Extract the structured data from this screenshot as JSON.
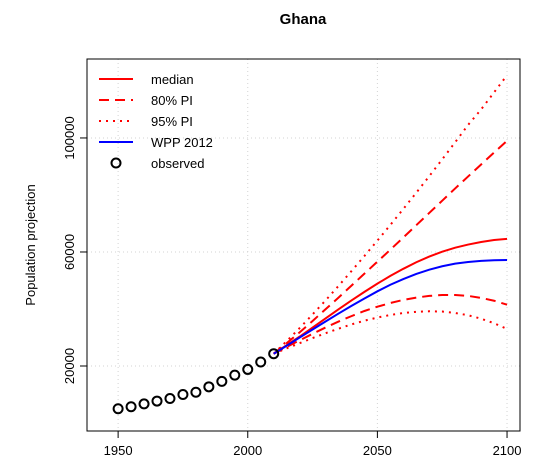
{
  "chart_data": {
    "type": "line",
    "title": "Ghana",
    "ylabel": "Population projection",
    "xlim": [
      1938,
      2105
    ],
    "ylim": [
      -2800,
      127700
    ],
    "xticks": [
      1950,
      2000,
      2050,
      2100
    ],
    "yticks": [
      20000,
      60000,
      100000
    ],
    "grid": true,
    "legend": "topleft",
    "series": [
      {
        "name": "median",
        "color": "#ff0000",
        "linestyle": "solid",
        "x": [
          2010,
          2015,
          2020,
          2025,
          2030,
          2035,
          2040,
          2045,
          2050,
          2055,
          2060,
          2065,
          2070,
          2075,
          2080,
          2085,
          2090,
          2095,
          2100
        ],
        "values": [
          24300,
          27300,
          30300,
          33500,
          36700,
          39900,
          43000,
          46000,
          48900,
          51600,
          54100,
          56400,
          58400,
          60100,
          61500,
          62600,
          63500,
          64200,
          64600
        ]
      },
      {
        "name": "80% PI",
        "color": "#ff0000",
        "linestyle": "dashed",
        "x": [
          2010,
          2015,
          2020,
          2025,
          2030,
          2035,
          2040,
          2045,
          2050,
          2055,
          2060,
          2065,
          2070,
          2075,
          2080,
          2085,
          2090,
          2095,
          2100
        ],
        "values": [
          24300,
          28000,
          31800,
          35800,
          39900,
          44000,
          48200,
          52400,
          56600,
          60800,
          65100,
          69400,
          73700,
          78000,
          82300,
          86500,
          90700,
          94900,
          99000
        ]
      },
      {
        "name": "80% PI",
        "color": "#ff0000",
        "linestyle": "dashed",
        "legend": false,
        "x": [
          2010,
          2015,
          2020,
          2025,
          2030,
          2035,
          2040,
          2045,
          2050,
          2055,
          2060,
          2065,
          2070,
          2075,
          2080,
          2085,
          2090,
          2095,
          2100
        ],
        "values": [
          24300,
          26700,
          29000,
          31300,
          33500,
          35600,
          37500,
          39300,
          40800,
          42100,
          43200,
          44000,
          44600,
          44900,
          44900,
          44600,
          43900,
          42900,
          41500
        ]
      },
      {
        "name": "95% PI",
        "color": "#ff0000",
        "linestyle": "dotted",
        "x": [
          2010,
          2015,
          2020,
          2025,
          2030,
          2035,
          2040,
          2045,
          2050,
          2055,
          2060,
          2065,
          2070,
          2075,
          2080,
          2085,
          2090,
          2095,
          2100
        ],
        "values": [
          24300,
          28700,
          33300,
          38100,
          43000,
          48100,
          53300,
          58600,
          64000,
          69500,
          75100,
          80800,
          86600,
          92500,
          98500,
          104600,
          110000,
          116000,
          122000
        ]
      },
      {
        "name": "95% PI",
        "color": "#ff0000",
        "linestyle": "dotted",
        "legend": false,
        "x": [
          2010,
          2015,
          2020,
          2025,
          2030,
          2035,
          2040,
          2045,
          2050,
          2055,
          2060,
          2065,
          2070,
          2075,
          2080,
          2085,
          2090,
          2095,
          2100
        ],
        "values": [
          24300,
          26200,
          28000,
          29800,
          31500,
          33100,
          34600,
          35900,
          37000,
          37900,
          38600,
          39000,
          39200,
          39100,
          38600,
          37800,
          36600,
          35000,
          33000
        ]
      },
      {
        "name": "WPP 2012",
        "color": "#0000ff",
        "linestyle": "solid",
        "x": [
          2010,
          2015,
          2020,
          2025,
          2030,
          2035,
          2040,
          2045,
          2050,
          2055,
          2060,
          2065,
          2070,
          2075,
          2080,
          2085,
          2090,
          2095,
          2100
        ],
        "values": [
          24300,
          27100,
          30000,
          32800,
          35600,
          38400,
          41100,
          43700,
          46200,
          48500,
          50500,
          52300,
          53800,
          55000,
          55900,
          56500,
          56900,
          57100,
          57200
        ]
      },
      {
        "name": "observed",
        "color": "#000000",
        "linestyle": "points",
        "x": [
          1950,
          1955,
          1960,
          1965,
          1970,
          1975,
          1980,
          1985,
          1990,
          1995,
          2000,
          2005,
          2010
        ],
        "values": [
          5000,
          5700,
          6700,
          7700,
          8600,
          10000,
          10800,
          12700,
          14600,
          16800,
          18800,
          21400,
          24300
        ]
      }
    ]
  }
}
